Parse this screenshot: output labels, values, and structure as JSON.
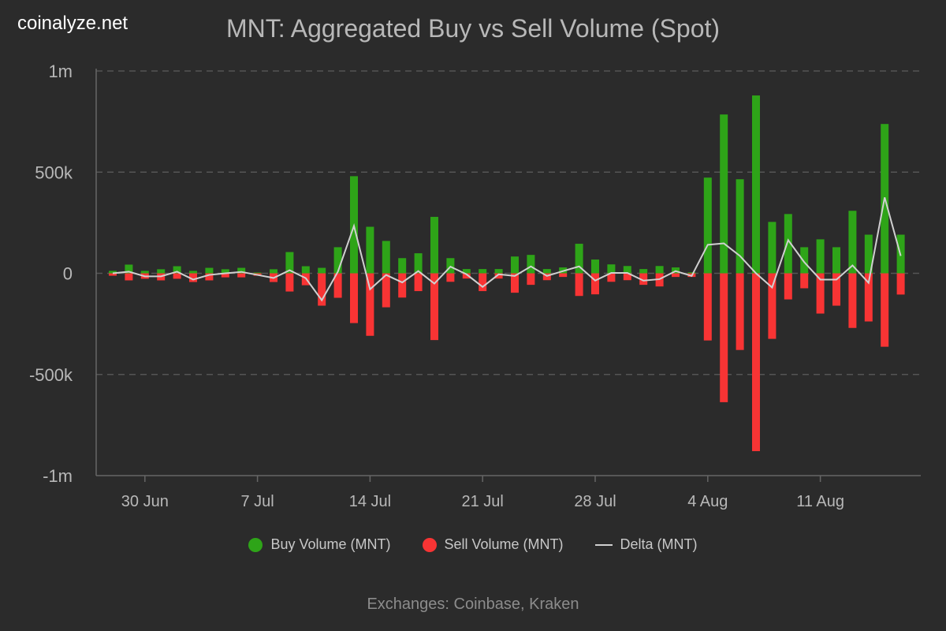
{
  "brand": "coinalyze.net",
  "chart_data": {
    "type": "bar",
    "title": "MNT: Aggregated Buy vs Sell Volume (Spot)",
    "ylim": [
      -1000000,
      1000000
    ],
    "y_ticks": [
      {
        "v": 1000000,
        "label": "1m"
      },
      {
        "v": 500000,
        "label": "500k"
      },
      {
        "v": 0,
        "label": "0"
      },
      {
        "v": -500000,
        "label": "-500k"
      },
      {
        "v": -1000000,
        "label": "-1m"
      }
    ],
    "x_ticks": [
      {
        "i": 2,
        "label": "30 Jun"
      },
      {
        "i": 9,
        "label": "7 Jul"
      },
      {
        "i": 16,
        "label": "14 Jul"
      },
      {
        "i": 23,
        "label": "21 Jul"
      },
      {
        "i": 30,
        "label": "28 Jul"
      },
      {
        "i": 37,
        "label": "4 Aug"
      },
      {
        "i": 44,
        "label": "11 Aug"
      }
    ],
    "start_date": "28 Jun",
    "grid": true,
    "legend_position": "bottom",
    "series": [
      {
        "name": "Buy Volume (MNT)",
        "color": "#2ea418",
        "values": [
          12000,
          43000,
          12000,
          20000,
          35000,
          12000,
          27000,
          20000,
          27000,
          4000,
          20000,
          105000,
          35000,
          27000,
          129000,
          480000,
          230000,
          160000,
          75000,
          99000,
          279000,
          75000,
          21000,
          21000,
          21000,
          83000,
          91000,
          21000,
          29000,
          146000,
          68000,
          44000,
          36000,
          21000,
          36000,
          29000,
          5000,
          473000,
          785000,
          465000,
          879000,
          254000,
          293000,
          129000,
          168000,
          129000,
          309000,
          191000,
          738000,
          191000
        ]
      },
      {
        "name": "Sell Volume (MNT)",
        "color": "#f83434",
        "values": [
          12000,
          35000,
          27000,
          35000,
          27000,
          43000,
          35000,
          20000,
          20000,
          12000,
          43000,
          90000,
          59000,
          160000,
          121000,
          246000,
          309000,
          168000,
          120000,
          88000,
          330000,
          42000,
          26000,
          88000,
          26000,
          96000,
          57000,
          34000,
          18000,
          112000,
          104000,
          42000,
          34000,
          57000,
          65000,
          18000,
          18000,
          332000,
          637000,
          379000,
          879000,
          324000,
          129000,
          74000,
          199000,
          160000,
          270000,
          238000,
          363000,
          105000
        ]
      },
      {
        "name": "Delta (MNT)",
        "color": "#d0d0d0",
        "derived": "buy - sell"
      }
    ]
  },
  "footer": "Exchanges: Coinbase, Kraken"
}
